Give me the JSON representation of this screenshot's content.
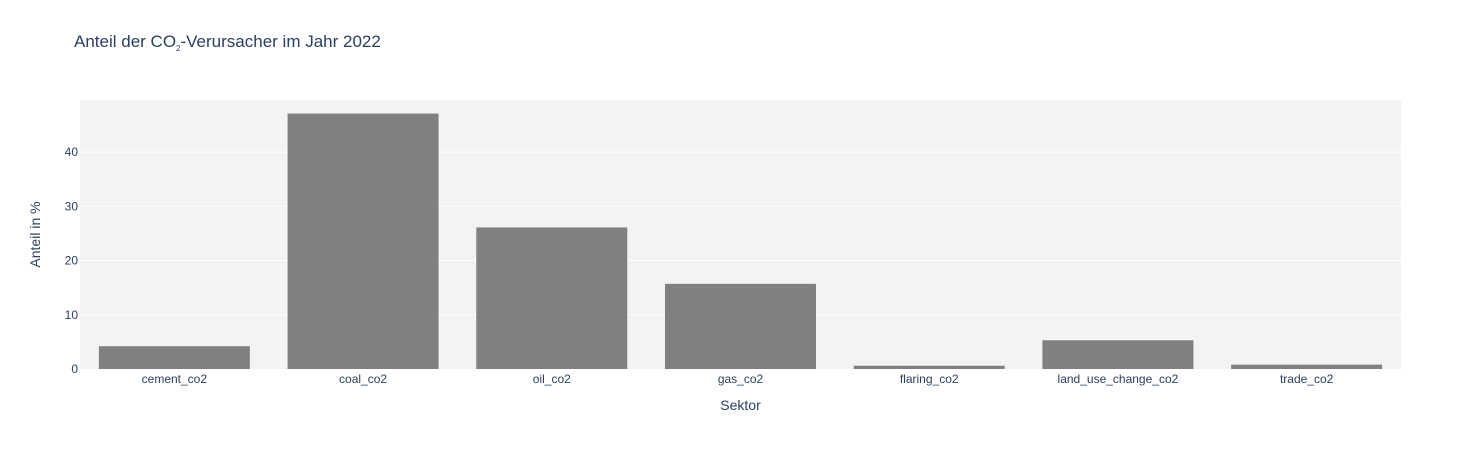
{
  "chart_data": {
    "type": "bar",
    "title": {
      "prefix": "Anteil der CO",
      "subscript": "2",
      "suffix": "-Verursacher im Jahr 2022"
    },
    "xlabel": "Sektor",
    "ylabel": "Anteil in %",
    "categories": [
      "cement_co2",
      "coal_co2",
      "oil_co2",
      "gas_co2",
      "flaring_co2",
      "land_use_change_co2",
      "trade_co2"
    ],
    "values": [
      4.2,
      47.1,
      26.1,
      15.7,
      0.6,
      5.3,
      0.8
    ],
    "ylim": [
      0,
      49.6
    ],
    "yticks": [
      0,
      10,
      20,
      30,
      40
    ],
    "grid": true,
    "colors": {
      "bar": "#808080",
      "plot_background": "#f3f3f3",
      "gridline": "#ffffff",
      "text": "#2a3f5f"
    }
  }
}
